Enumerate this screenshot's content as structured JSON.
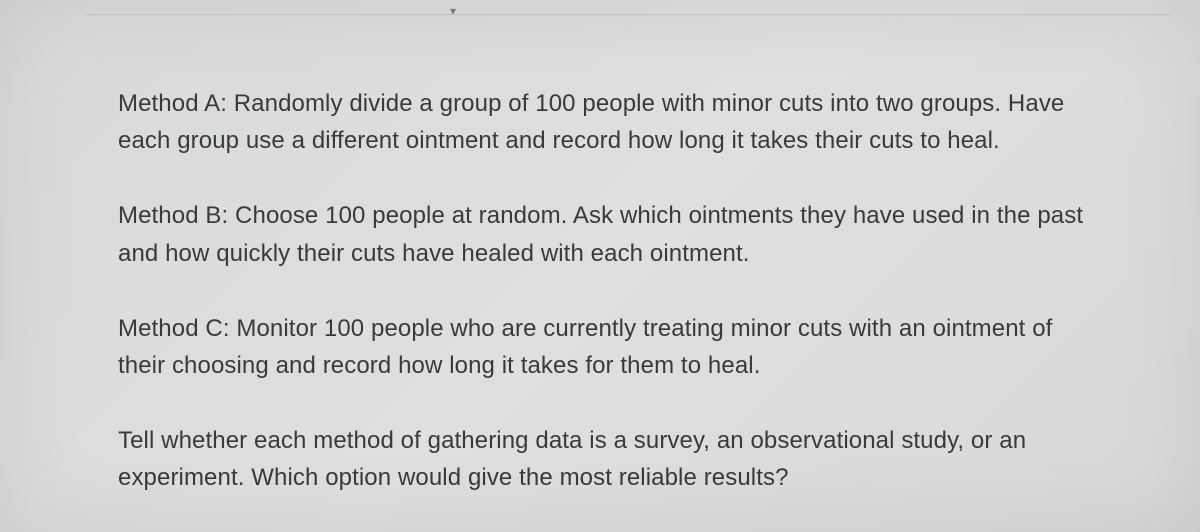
{
  "document": {
    "background_color": "#dbdcdb",
    "text_color": "#383b3d",
    "font_family": "Helvetica Neue, Helvetica, Arial, sans-serif",
    "font_size_pt": 18,
    "line_height": 1.55,
    "paragraphs": [
      "Method A: Randomly divide a group of 100 people with minor cuts into two groups. Have each group use a different ointment and record how long it takes their cuts to heal.",
      "Method B: Choose 100 people at random. Ask which ointments they have used in the past and how quickly their cuts have healed with each ointment.",
      "Method C: Monitor 100 people who are currently treating minor cuts with an ointment of their choosing and record how long it takes for them to heal.",
      "Tell whether each method of gathering data is a survey, an observational study, or an experiment. Which option would give the most reliable results?"
    ],
    "dropdown_glyph": "▾"
  }
}
